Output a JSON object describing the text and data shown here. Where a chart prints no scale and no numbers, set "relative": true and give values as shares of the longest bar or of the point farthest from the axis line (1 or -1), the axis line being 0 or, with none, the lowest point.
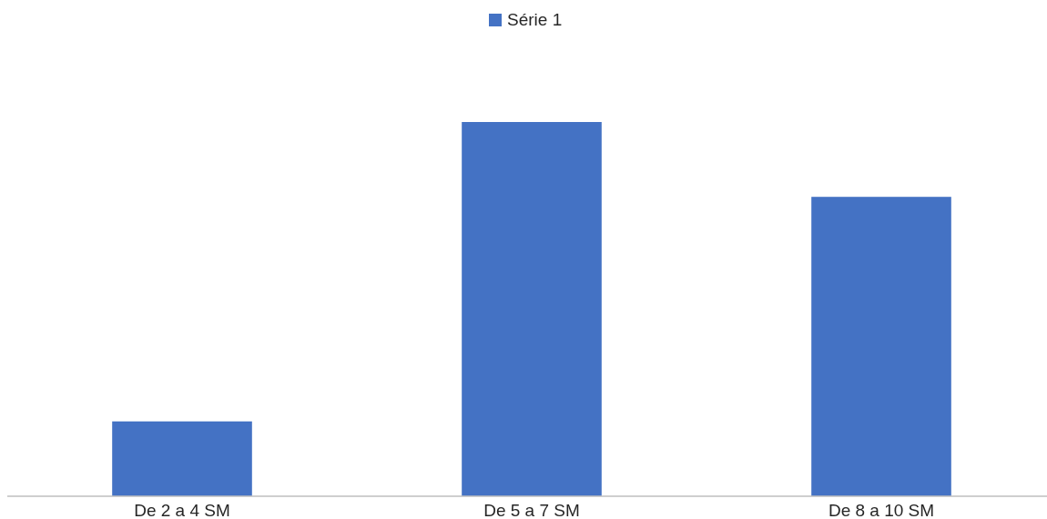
{
  "chart_data": {
    "type": "bar",
    "relative": true,
    "categories": [
      "De 2 a 4 SM",
      "De 5 a 7 SM",
      "De 8 a 10 SM"
    ],
    "series": [
      {
        "name": "Série 1",
        "color": "#4472c4",
        "values": [
          0.2,
          1,
          0.8
        ]
      }
    ],
    "legend": "top"
  }
}
